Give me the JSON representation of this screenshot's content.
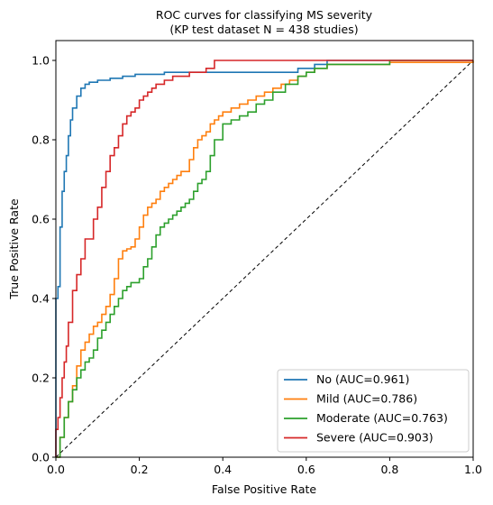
{
  "chart_data": {
    "type": "line",
    "title": "ROC curves for classifying MS severity",
    "subtitle": "(KP test dataset N = 438 studies)",
    "xlabel": "False Positive Rate",
    "ylabel": "True Positive Rate",
    "xlim": [
      0,
      1
    ],
    "ylim": [
      0,
      1.05
    ],
    "xticks": [
      "0.0",
      "0.2",
      "0.4",
      "0.6",
      "0.8",
      "1.0"
    ],
    "yticks": [
      "0.0",
      "0.2",
      "0.4",
      "0.6",
      "0.8",
      "1.0"
    ],
    "grid": false,
    "legend_position": "bottom-right",
    "series": [
      {
        "name": "No (AUC=0.961)",
        "color": "#1f77b4",
        "x": [
          0,
          0,
          0.005,
          0.005,
          0.01,
          0.01,
          0.015,
          0.015,
          0.02,
          0.02,
          0.025,
          0.025,
          0.03,
          0.03,
          0.035,
          0.035,
          0.04,
          0.04,
          0.05,
          0.05,
          0.06,
          0.06,
          0.07,
          0.07,
          0.08,
          0.08,
          0.1,
          0.1,
          0.13,
          0.13,
          0.16,
          0.16,
          0.19,
          0.19,
          0.26,
          0.26,
          0.58,
          0.58,
          0.62,
          0.62,
          0.65,
          0.65,
          1.0
        ],
        "y": [
          0,
          0.4,
          0.4,
          0.43,
          0.43,
          0.58,
          0.58,
          0.67,
          0.67,
          0.72,
          0.72,
          0.76,
          0.76,
          0.81,
          0.81,
          0.85,
          0.85,
          0.88,
          0.88,
          0.91,
          0.91,
          0.93,
          0.93,
          0.94,
          0.94,
          0.945,
          0.945,
          0.95,
          0.95,
          0.955,
          0.955,
          0.96,
          0.96,
          0.965,
          0.965,
          0.97,
          0.97,
          0.98,
          0.98,
          0.99,
          0.99,
          1.0,
          1.0
        ]
      },
      {
        "name": "Mild (AUC=0.786)",
        "color": "#ff7f0e",
        "x": [
          0,
          0.01,
          0.02,
          0.03,
          0.04,
          0.05,
          0.06,
          0.07,
          0.08,
          0.09,
          0.1,
          0.11,
          0.12,
          0.13,
          0.14,
          0.15,
          0.16,
          0.17,
          0.18,
          0.19,
          0.2,
          0.21,
          0.22,
          0.23,
          0.24,
          0.25,
          0.26,
          0.27,
          0.28,
          0.29,
          0.3,
          0.31,
          0.32,
          0.33,
          0.34,
          0.35,
          0.36,
          0.37,
          0.38,
          0.39,
          0.4,
          0.42,
          0.44,
          0.46,
          0.48,
          0.5,
          0.52,
          0.54,
          0.56,
          0.58,
          0.6,
          0.62,
          0.65,
          0.7,
          0.75,
          0.8,
          1.0
        ],
        "y": [
          0,
          0.05,
          0.1,
          0.14,
          0.18,
          0.23,
          0.27,
          0.29,
          0.31,
          0.33,
          0.34,
          0.36,
          0.38,
          0.41,
          0.45,
          0.5,
          0.52,
          0.525,
          0.53,
          0.55,
          0.58,
          0.61,
          0.63,
          0.64,
          0.65,
          0.67,
          0.68,
          0.69,
          0.7,
          0.71,
          0.72,
          0.72,
          0.75,
          0.78,
          0.8,
          0.81,
          0.82,
          0.84,
          0.85,
          0.86,
          0.87,
          0.88,
          0.89,
          0.9,
          0.91,
          0.92,
          0.93,
          0.94,
          0.95,
          0.96,
          0.97,
          0.98,
          0.99,
          0.99,
          0.99,
          0.995,
          1.0
        ]
      },
      {
        "name": "Moderate (AUC=0.763)",
        "color": "#2ca02c",
        "x": [
          0,
          0.01,
          0.02,
          0.03,
          0.04,
          0.05,
          0.06,
          0.07,
          0.08,
          0.09,
          0.1,
          0.11,
          0.12,
          0.13,
          0.14,
          0.15,
          0.16,
          0.17,
          0.18,
          0.19,
          0.2,
          0.21,
          0.22,
          0.23,
          0.24,
          0.25,
          0.26,
          0.27,
          0.28,
          0.29,
          0.3,
          0.31,
          0.32,
          0.33,
          0.34,
          0.35,
          0.36,
          0.37,
          0.38,
          0.4,
          0.42,
          0.44,
          0.46,
          0.48,
          0.5,
          0.52,
          0.55,
          0.58,
          0.6,
          0.62,
          0.65,
          0.7,
          0.75,
          0.8,
          0.9,
          1.0
        ],
        "y": [
          0,
          0.05,
          0.1,
          0.14,
          0.17,
          0.2,
          0.22,
          0.24,
          0.25,
          0.27,
          0.3,
          0.32,
          0.34,
          0.36,
          0.38,
          0.4,
          0.42,
          0.43,
          0.44,
          0.44,
          0.45,
          0.48,
          0.5,
          0.53,
          0.56,
          0.58,
          0.59,
          0.6,
          0.61,
          0.62,
          0.63,
          0.64,
          0.65,
          0.67,
          0.69,
          0.7,
          0.72,
          0.76,
          0.8,
          0.84,
          0.85,
          0.86,
          0.87,
          0.89,
          0.9,
          0.92,
          0.94,
          0.96,
          0.97,
          0.98,
          0.99,
          0.99,
          0.99,
          1.0,
          1.0,
          1.0
        ]
      },
      {
        "name": "Severe (AUC=0.903)",
        "color": "#d62728",
        "x": [
          0,
          0,
          0.005,
          0.01,
          0.015,
          0.02,
          0.025,
          0.03,
          0.04,
          0.05,
          0.06,
          0.07,
          0.08,
          0.09,
          0.1,
          0.11,
          0.12,
          0.13,
          0.14,
          0.15,
          0.16,
          0.17,
          0.18,
          0.19,
          0.2,
          0.21,
          0.22,
          0.23,
          0.24,
          0.26,
          0.28,
          0.32,
          0.36,
          0.38,
          0.38,
          0.58,
          0.58,
          0.81,
          1.0
        ],
        "y": [
          0,
          0.07,
          0.1,
          0.15,
          0.2,
          0.24,
          0.28,
          0.34,
          0.42,
          0.46,
          0.5,
          0.55,
          0.55,
          0.6,
          0.63,
          0.68,
          0.72,
          0.76,
          0.78,
          0.81,
          0.84,
          0.86,
          0.87,
          0.88,
          0.9,
          0.91,
          0.92,
          0.93,
          0.94,
          0.95,
          0.96,
          0.97,
          0.98,
          0.98,
          1.0,
          1.0,
          1.0,
          1.0,
          1.0
        ]
      }
    ],
    "reference_line": {
      "x": [
        0,
        1
      ],
      "y": [
        0,
        1
      ],
      "style": "dashed",
      "color": "#000000"
    }
  }
}
